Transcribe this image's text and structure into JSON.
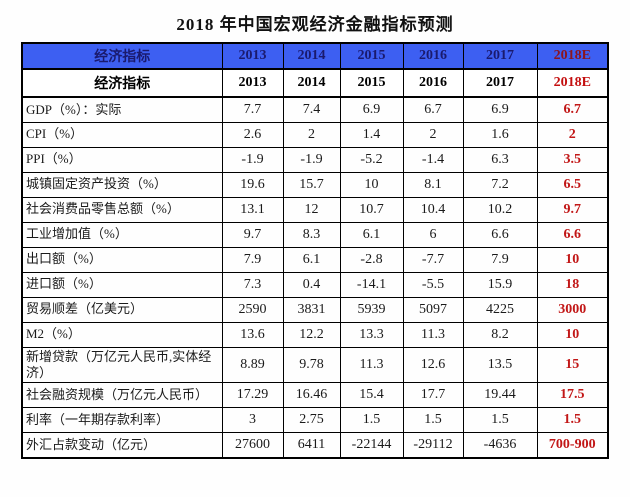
{
  "chart_data": {
    "type": "table",
    "title": "2018 年中国宏观经济金融指标预测",
    "header_label": "经济指标",
    "header_rows": 2,
    "columns": [
      "2013",
      "2014",
      "2015",
      "2016",
      "2017",
      "2018E"
    ],
    "forecast_column": "2018E",
    "rows": [
      {
        "label": "GDP（%）：实际",
        "values": [
          "7.7",
          "7.4",
          "6.9",
          "6.7",
          "6.9",
          "6.7"
        ]
      },
      {
        "label": "CPI（%）",
        "values": [
          "2.6",
          "2",
          "1.4",
          "2",
          "1.6",
          "2"
        ]
      },
      {
        "label": "PPI（%）",
        "values": [
          "-1.9",
          "-1.9",
          "-5.2",
          "-1.4",
          "6.3",
          "3.5"
        ]
      },
      {
        "label": "城镇固定资产投资（%）",
        "values": [
          "19.6",
          "15.7",
          "10",
          "8.1",
          "7.2",
          "6.5"
        ]
      },
      {
        "label": "社会消费品零售总额（%）",
        "values": [
          "13.1",
          "12",
          "10.7",
          "10.4",
          "10.2",
          "9.7"
        ]
      },
      {
        "label": "工业增加值（%）",
        "values": [
          "9.7",
          "8.3",
          "6.1",
          "6",
          "6.6",
          "6.6"
        ]
      },
      {
        "label": "出口额（%）",
        "values": [
          "7.9",
          "6.1",
          "-2.8",
          "-7.7",
          "7.9",
          "10"
        ]
      },
      {
        "label": "进口额（%）",
        "values": [
          "7.3",
          "0.4",
          "-14.1",
          "-5.5",
          "15.9",
          "18"
        ]
      },
      {
        "label": "贸易顺差（亿美元）",
        "values": [
          "2590",
          "3831",
          "5939",
          "5097",
          "4225",
          "3000"
        ]
      },
      {
        "label": "M2（%）",
        "values": [
          "13.6",
          "12.2",
          "13.3",
          "11.3",
          "8.2",
          "10"
        ]
      },
      {
        "label": "新增贷款（万亿元人民币,实体经济）",
        "values": [
          "8.89",
          "9.78",
          "11.3",
          "12.6",
          "13.5",
          "15"
        ]
      },
      {
        "label": "社会融资规模（万亿元人民币）",
        "values": [
          "17.29",
          "16.46",
          "15.4",
          "17.7",
          "19.44",
          "17.5"
        ]
      },
      {
        "label": "利率（一年期存款利率）",
        "values": [
          "3",
          "2.75",
          "1.5",
          "1.5",
          "1.5",
          "1.5"
        ]
      },
      {
        "label": "外汇占款变动（亿元）",
        "values": [
          "27600",
          "6411",
          "-22144",
          "-29112",
          "-4636",
          "700-900"
        ]
      }
    ]
  },
  "colors": {
    "header_background": "#3d5ff2",
    "header_text": "#1a1a6e",
    "header_forecast_text_on_blue": "#8b1520",
    "forecast_red": "#c21717",
    "border": "#000000",
    "body_text": "#1a1a1a"
  }
}
